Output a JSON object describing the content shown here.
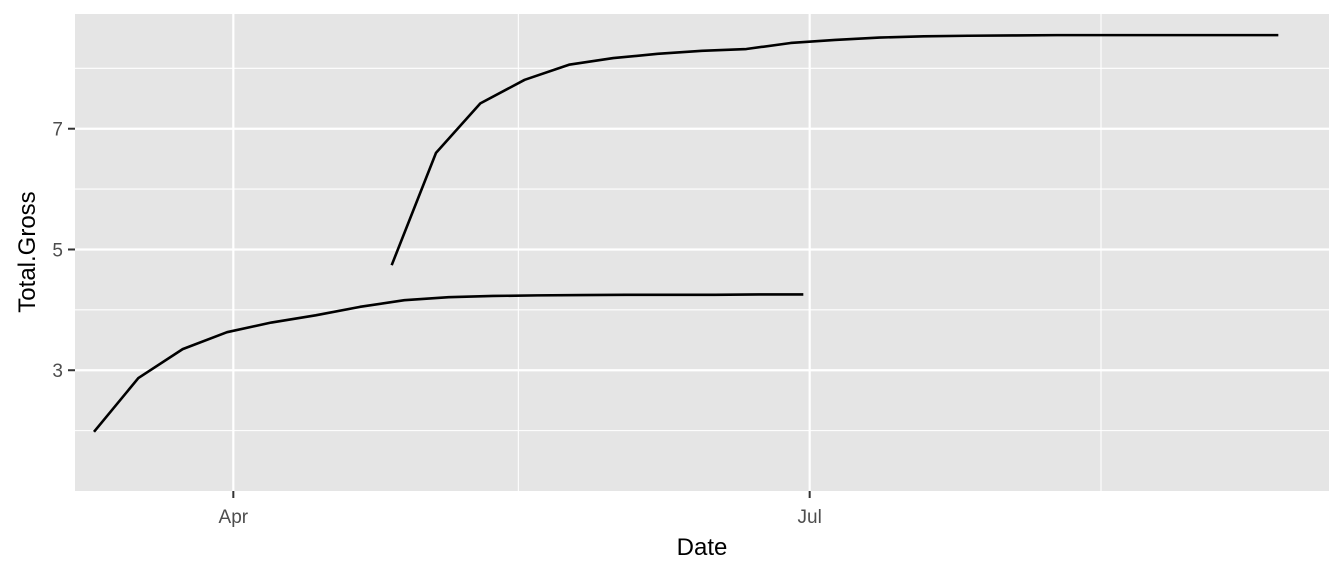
{
  "chart_data": {
    "type": "line",
    "title": "",
    "xlabel": "Date",
    "ylabel": "Total.Gross",
    "x_axis": {
      "scale": "date",
      "range": [
        "2020-03-07",
        "2020-09-21"
      ],
      "ticks": [
        {
          "date": "2020-04-01",
          "label": "Apr"
        },
        {
          "date": "2020-07-01",
          "label": "Jul"
        }
      ],
      "minor_breaks": [
        "2020-05-16",
        "2020-08-16"
      ]
    },
    "y_axis": {
      "range": [
        1.0,
        8.9
      ],
      "ticks": [
        3,
        5,
        7
      ],
      "minor_breaks": [
        2,
        4,
        6,
        8
      ]
    },
    "grid": true,
    "legend": "none",
    "series": [
      {
        "color": "#000000",
        "points": [
          {
            "x": "2020-03-10",
            "y": 1.98
          },
          {
            "x": "2020-03-17",
            "y": 2.87
          },
          {
            "x": "2020-03-24",
            "y": 3.35
          },
          {
            "x": "2020-03-31",
            "y": 3.63
          },
          {
            "x": "2020-04-07",
            "y": 3.79
          },
          {
            "x": "2020-04-14",
            "y": 3.91
          },
          {
            "x": "2020-04-21",
            "y": 4.05
          },
          {
            "x": "2020-04-28",
            "y": 4.16
          },
          {
            "x": "2020-05-05",
            "y": 4.21
          },
          {
            "x": "2020-05-12",
            "y": 4.23
          },
          {
            "x": "2020-05-19",
            "y": 4.24
          },
          {
            "x": "2020-05-26",
            "y": 4.245
          },
          {
            "x": "2020-06-02",
            "y": 4.25
          },
          {
            "x": "2020-06-09",
            "y": 4.25
          },
          {
            "x": "2020-06-16",
            "y": 4.25
          },
          {
            "x": "2020-06-23",
            "y": 4.255
          },
          {
            "x": "2020-06-30",
            "y": 4.255
          }
        ]
      },
      {
        "color": "#000000",
        "points": [
          {
            "x": "2020-04-26",
            "y": 4.74
          },
          {
            "x": "2020-05-03",
            "y": 6.6
          },
          {
            "x": "2020-05-10",
            "y": 7.42
          },
          {
            "x": "2020-05-17",
            "y": 7.81
          },
          {
            "x": "2020-05-24",
            "y": 8.06
          },
          {
            "x": "2020-05-31",
            "y": 8.17
          },
          {
            "x": "2020-06-07",
            "y": 8.24
          },
          {
            "x": "2020-06-14",
            "y": 8.29
          },
          {
            "x": "2020-06-21",
            "y": 8.32
          },
          {
            "x": "2020-06-28",
            "y": 8.42
          },
          {
            "x": "2020-07-05",
            "y": 8.47
          },
          {
            "x": "2020-07-12",
            "y": 8.51
          },
          {
            "x": "2020-07-19",
            "y": 8.53
          },
          {
            "x": "2020-07-26",
            "y": 8.54
          },
          {
            "x": "2020-08-02",
            "y": 8.545
          },
          {
            "x": "2020-08-09",
            "y": 8.55
          },
          {
            "x": "2020-08-16",
            "y": 8.55
          },
          {
            "x": "2020-08-23",
            "y": 8.55
          },
          {
            "x": "2020-08-30",
            "y": 8.55
          },
          {
            "x": "2020-09-06",
            "y": 8.55
          },
          {
            "x": "2020-09-13",
            "y": 8.55
          }
        ]
      }
    ]
  }
}
